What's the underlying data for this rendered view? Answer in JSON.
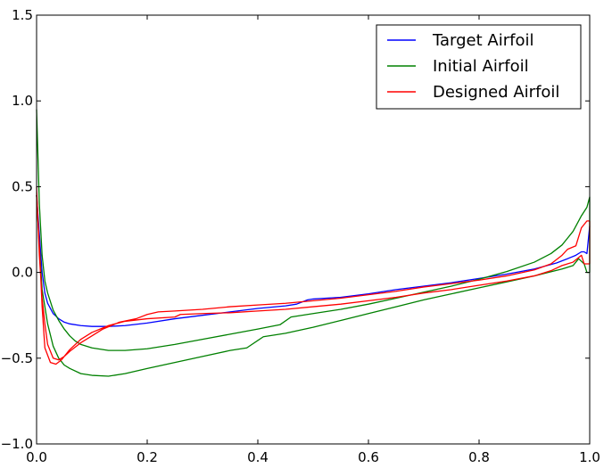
{
  "chart_data": {
    "type": "line",
    "title": "",
    "xlabel": "",
    "ylabel": "",
    "xlim": [
      0.0,
      1.0
    ],
    "ylim": [
      -1.0,
      1.5
    ],
    "x_ticks": [
      0.0,
      0.2,
      0.4,
      0.6,
      0.8,
      1.0
    ],
    "x_tick_labels": [
      "0.0",
      "0.2",
      "0.4",
      "0.6",
      "0.8",
      "1.0"
    ],
    "y_ticks": [
      -1.0,
      -0.5,
      0.0,
      0.5,
      1.0,
      1.5
    ],
    "y_tick_labels": [
      "−1.0",
      "−0.5",
      "0.0",
      "0.5",
      "1.0",
      "1.5"
    ],
    "grid": false,
    "legend_position": "top-right",
    "series": [
      {
        "name": "Target Airfoil",
        "color": "#0000ff",
        "points": [
          [
            0.0,
            0.45
          ],
          [
            0.01,
            0.0
          ],
          [
            0.015,
            -0.12
          ],
          [
            0.02,
            -0.18
          ],
          [
            0.03,
            -0.24
          ],
          [
            0.04,
            -0.27
          ],
          [
            0.05,
            -0.29
          ],
          [
            0.06,
            -0.3
          ],
          [
            0.08,
            -0.31
          ],
          [
            0.1,
            -0.315
          ],
          [
            0.13,
            -0.315
          ],
          [
            0.16,
            -0.31
          ],
          [
            0.2,
            -0.295
          ],
          [
            0.25,
            -0.27
          ],
          [
            0.3,
            -0.25
          ],
          [
            0.35,
            -0.23
          ],
          [
            0.4,
            -0.21
          ],
          [
            0.45,
            -0.195
          ],
          [
            0.47,
            -0.185
          ],
          [
            0.49,
            -0.16
          ],
          [
            0.5,
            -0.155
          ],
          [
            0.55,
            -0.145
          ],
          [
            0.6,
            -0.125
          ],
          [
            0.65,
            -0.1
          ],
          [
            0.7,
            -0.08
          ],
          [
            0.75,
            -0.06
          ],
          [
            0.8,
            -0.035
          ],
          [
            0.85,
            -0.01
          ],
          [
            0.9,
            0.02
          ],
          [
            0.94,
            0.055
          ],
          [
            0.96,
            0.08
          ],
          [
            0.975,
            0.1
          ],
          [
            0.985,
            0.12
          ],
          [
            0.99,
            0.12
          ],
          [
            0.995,
            0.11
          ],
          [
            1.0,
            0.27
          ]
        ]
      },
      {
        "name": "Initial Airfoil",
        "color": "#008000",
        "points": [
          [
            0.0,
            0.95
          ],
          [
            0.005,
            0.4
          ],
          [
            0.01,
            0.1
          ],
          [
            0.015,
            -0.05
          ],
          [
            0.02,
            -0.12
          ],
          [
            0.03,
            -0.22
          ],
          [
            0.04,
            -0.28
          ],
          [
            0.05,
            -0.33
          ],
          [
            0.06,
            -0.37
          ],
          [
            0.07,
            -0.4
          ],
          [
            0.08,
            -0.42
          ],
          [
            0.1,
            -0.44
          ],
          [
            0.13,
            -0.455
          ],
          [
            0.16,
            -0.455
          ],
          [
            0.2,
            -0.445
          ],
          [
            0.25,
            -0.42
          ],
          [
            0.3,
            -0.39
          ],
          [
            0.35,
            -0.36
          ],
          [
            0.4,
            -0.33
          ],
          [
            0.44,
            -0.305
          ],
          [
            0.46,
            -0.26
          ],
          [
            0.5,
            -0.24
          ],
          [
            0.55,
            -0.215
          ],
          [
            0.6,
            -0.185
          ],
          [
            0.65,
            -0.15
          ],
          [
            0.7,
            -0.115
          ],
          [
            0.75,
            -0.08
          ],
          [
            0.8,
            -0.04
          ],
          [
            0.85,
            0.005
          ],
          [
            0.9,
            0.06
          ],
          [
            0.93,
            0.11
          ],
          [
            0.95,
            0.16
          ],
          [
            0.97,
            0.24
          ],
          [
            0.985,
            0.33
          ],
          [
            0.995,
            0.38
          ],
          [
            1.0,
            0.44
          ],
          [
            1.0,
            0.0
          ],
          [
            0.995,
            0.0
          ],
          [
            0.99,
            0.05
          ],
          [
            0.98,
            0.08
          ],
          [
            0.97,
            0.04
          ],
          [
            0.95,
            0.02
          ],
          [
            0.9,
            -0.02
          ],
          [
            0.85,
            -0.055
          ],
          [
            0.8,
            -0.09
          ],
          [
            0.75,
            -0.125
          ],
          [
            0.7,
            -0.16
          ],
          [
            0.65,
            -0.2
          ],
          [
            0.6,
            -0.24
          ],
          [
            0.55,
            -0.28
          ],
          [
            0.5,
            -0.32
          ],
          [
            0.45,
            -0.355
          ],
          [
            0.41,
            -0.375
          ],
          [
            0.38,
            -0.44
          ],
          [
            0.35,
            -0.455
          ],
          [
            0.3,
            -0.49
          ],
          [
            0.25,
            -0.525
          ],
          [
            0.2,
            -0.56
          ],
          [
            0.16,
            -0.59
          ],
          [
            0.13,
            -0.605
          ],
          [
            0.1,
            -0.6
          ],
          [
            0.08,
            -0.59
          ],
          [
            0.06,
            -0.56
          ],
          [
            0.05,
            -0.54
          ],
          [
            0.04,
            -0.5
          ],
          [
            0.03,
            -0.43
          ],
          [
            0.02,
            -0.3
          ],
          [
            0.01,
            -0.1
          ],
          [
            0.005,
            0.15
          ],
          [
            0.0,
            0.45
          ]
        ]
      },
      {
        "name": "Designed Airfoil",
        "color": "#ff0000",
        "points": [
          [
            0.0,
            0.5
          ],
          [
            0.005,
            0.1
          ],
          [
            0.01,
            -0.15
          ],
          [
            0.015,
            -0.3
          ],
          [
            0.02,
            -0.42
          ],
          [
            0.03,
            -0.5
          ],
          [
            0.04,
            -0.51
          ],
          [
            0.05,
            -0.49
          ],
          [
            0.06,
            -0.46
          ],
          [
            0.08,
            -0.41
          ],
          [
            0.1,
            -0.37
          ],
          [
            0.12,
            -0.33
          ],
          [
            0.15,
            -0.29
          ],
          [
            0.18,
            -0.27
          ],
          [
            0.2,
            -0.245
          ],
          [
            0.22,
            -0.23
          ],
          [
            0.25,
            -0.225
          ],
          [
            0.3,
            -0.215
          ],
          [
            0.35,
            -0.2
          ],
          [
            0.4,
            -0.19
          ],
          [
            0.45,
            -0.18
          ],
          [
            0.5,
            -0.165
          ],
          [
            0.55,
            -0.15
          ],
          [
            0.6,
            -0.13
          ],
          [
            0.65,
            -0.11
          ],
          [
            0.7,
            -0.085
          ],
          [
            0.75,
            -0.065
          ],
          [
            0.8,
            -0.045
          ],
          [
            0.85,
            -0.02
          ],
          [
            0.9,
            0.015
          ],
          [
            0.93,
            0.05
          ],
          [
            0.95,
            0.1
          ],
          [
            0.96,
            0.135
          ],
          [
            0.975,
            0.155
          ],
          [
            0.985,
            0.26
          ],
          [
            0.995,
            0.3
          ],
          [
            1.0,
            0.3
          ],
          [
            1.0,
            0.05
          ],
          [
            0.99,
            0.05
          ],
          [
            0.985,
            0.1
          ],
          [
            0.97,
            0.06
          ],
          [
            0.95,
            0.04
          ],
          [
            0.93,
            0.01
          ],
          [
            0.9,
            -0.02
          ],
          [
            0.85,
            -0.05
          ],
          [
            0.8,
            -0.075
          ],
          [
            0.75,
            -0.1
          ],
          [
            0.7,
            -0.12
          ],
          [
            0.65,
            -0.145
          ],
          [
            0.6,
            -0.165
          ],
          [
            0.55,
            -0.185
          ],
          [
            0.5,
            -0.2
          ],
          [
            0.45,
            -0.215
          ],
          [
            0.4,
            -0.225
          ],
          [
            0.35,
            -0.235
          ],
          [
            0.3,
            -0.24
          ],
          [
            0.26,
            -0.245
          ],
          [
            0.25,
            -0.26
          ],
          [
            0.2,
            -0.27
          ],
          [
            0.16,
            -0.285
          ],
          [
            0.13,
            -0.31
          ],
          [
            0.1,
            -0.35
          ],
          [
            0.08,
            -0.39
          ],
          [
            0.06,
            -0.45
          ],
          [
            0.045,
            -0.51
          ],
          [
            0.035,
            -0.535
          ],
          [
            0.025,
            -0.525
          ],
          [
            0.015,
            -0.44
          ],
          [
            0.01,
            -0.2
          ],
          [
            0.005,
            0.15
          ],
          [
            0.0,
            0.45
          ]
        ]
      }
    ]
  }
}
